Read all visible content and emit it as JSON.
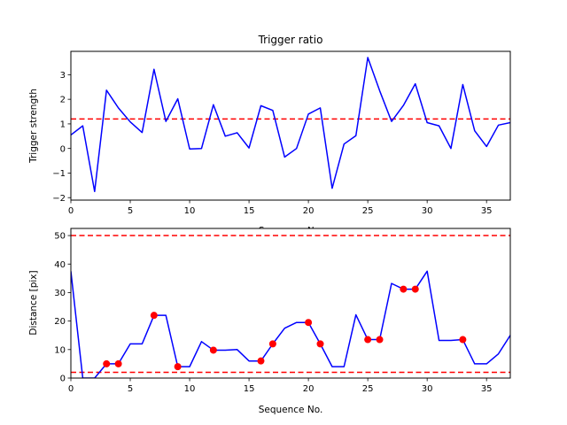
{
  "colors": {
    "line": "#0000ff",
    "threshold": "#ff0000",
    "marker": "#ff0000"
  },
  "chart_data": [
    {
      "type": "line",
      "title": "Trigger ratio",
      "xlabel": "Sequence No.",
      "ylabel": "Trigger strength",
      "xlim": [
        0,
        37
      ],
      "ylim": [
        -2.1,
        3.95
      ],
      "xticks": [
        0,
        5,
        10,
        15,
        20,
        25,
        30,
        35
      ],
      "yticks": [
        -2,
        -1,
        0,
        1,
        2,
        3
      ],
      "series": [
        {
          "x": [
            0,
            1,
            2,
            3,
            4,
            5,
            6,
            7,
            8,
            9,
            10,
            11,
            12,
            13,
            14,
            15,
            16,
            17,
            18,
            19,
            20,
            21,
            22,
            23,
            24,
            25,
            26,
            27,
            28,
            29,
            30,
            31,
            32,
            33,
            34,
            35,
            36,
            37
          ],
          "values": [
            0.55,
            0.92,
            -1.75,
            2.37,
            1.65,
            1.08,
            0.65,
            3.22,
            1.1,
            2.02,
            -0.02,
            0.0,
            1.78,
            0.5,
            0.64,
            0.02,
            1.74,
            1.55,
            -0.35,
            0.0,
            1.4,
            1.65,
            -1.62,
            0.18,
            0.52,
            3.7,
            2.35,
            1.1,
            1.75,
            2.63,
            1.05,
            0.92,
            0.0,
            2.6,
            0.72,
            0.08,
            0.95,
            1.05
          ]
        }
      ],
      "hlines": [
        1.2
      ]
    },
    {
      "type": "line",
      "title": "",
      "xlabel": "Sequence No.",
      "ylabel": "Distance [pix]",
      "xlim": [
        0,
        37
      ],
      "ylim": [
        0,
        52.5
      ],
      "xticks": [
        0,
        5,
        10,
        15,
        20,
        25,
        30,
        35
      ],
      "yticks": [
        0,
        10,
        20,
        30,
        40,
        50
      ],
      "series": [
        {
          "x": [
            0,
            1,
            2,
            3,
            4,
            5,
            6,
            7,
            8,
            9,
            10,
            11,
            12,
            13,
            14,
            15,
            16,
            17,
            18,
            19,
            20,
            21,
            22,
            23,
            24,
            25,
            26,
            27,
            28,
            29,
            30,
            31,
            32,
            33,
            34,
            35,
            36,
            37
          ],
          "values": [
            37.5,
            0,
            0,
            5,
            5,
            12,
            12,
            22,
            22,
            4,
            4,
            12.8,
            9.8,
            9.8,
            10,
            6,
            6,
            12,
            17.5,
            19.5,
            19.5,
            12,
            4,
            4,
            22.2,
            13.5,
            13.5,
            33.2,
            31.2,
            31.2,
            37.5,
            13.2,
            13.2,
            13.5,
            5,
            5,
            8.5,
            15
          ]
        }
      ],
      "markers": {
        "x": [
          3,
          4,
          7,
          9,
          12,
          16,
          17,
          20,
          21,
          25,
          26,
          28,
          29,
          33
        ],
        "values": [
          5,
          5,
          22,
          4,
          9.8,
          6,
          12,
          19.5,
          12,
          13.5,
          13.5,
          31.2,
          31.2,
          13.5
        ]
      },
      "hlines": [
        50,
        2
      ]
    }
  ]
}
